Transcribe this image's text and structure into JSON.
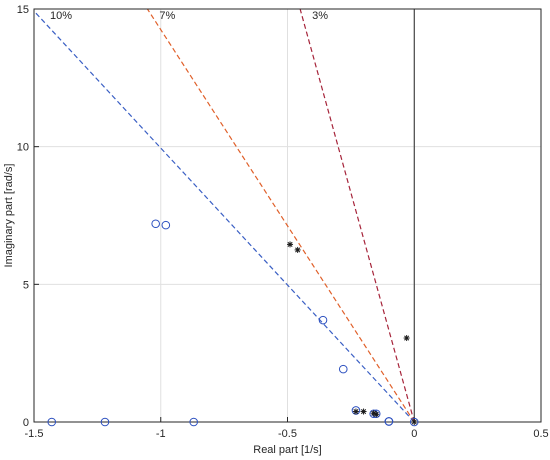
{
  "chart_data": {
    "type": "scatter",
    "title": "",
    "xlabel": "Real part [1/s]",
    "ylabel": "Imaginary part [rad/s]",
    "xlim": [
      -1.5,
      0.5
    ],
    "ylim": [
      0,
      15
    ],
    "xticks": [
      -1.5,
      -1,
      -0.5,
      0,
      0.5
    ],
    "yticks": [
      0,
      5,
      10,
      15
    ],
    "xtick_labels": [
      "-1.5",
      "-1",
      "-0.5",
      "0",
      "0.5"
    ],
    "ytick_labels": [
      "0",
      "5",
      "10",
      "15"
    ],
    "grid": true,
    "legend": "none",
    "colors": {
      "circles": "#2b4fbf",
      "asterisks": "#1a1a1a",
      "line_10": "#3a5fc4",
      "line_7": "#e0602a",
      "line_3": "#a6243a",
      "grid": "#e0e0e0",
      "axis": "#262626"
    },
    "damping_lines": [
      {
        "label": "10%",
        "zeta": 0.1,
        "color": "#3a5fc4"
      },
      {
        "label": "7%",
        "zeta": 0.07,
        "color": "#e0602a"
      },
      {
        "label": "3%",
        "zeta": 0.03,
        "color": "#a6243a"
      }
    ],
    "series": [
      {
        "marker": "circle",
        "x": [
          -1.02,
          -0.98,
          -0.36,
          -0.28,
          -0.23,
          -0.16,
          -0.15,
          -0.1,
          -0.1,
          -1.43,
          -1.22,
          -0.87,
          0.0
        ],
        "y": [
          7.2,
          7.15,
          3.7,
          1.92,
          0.42,
          0.3,
          0.3,
          0.02,
          0.02,
          0.0,
          0.0,
          0.0,
          0.0
        ]
      },
      {
        "marker": "asterisk",
        "x": [
          -0.49,
          -0.46,
          -0.03,
          -0.23,
          -0.2,
          -0.16,
          -0.15,
          0.0
        ],
        "y": [
          6.45,
          6.25,
          3.05,
          0.38,
          0.38,
          0.32,
          0.28,
          0.0
        ]
      }
    ]
  }
}
